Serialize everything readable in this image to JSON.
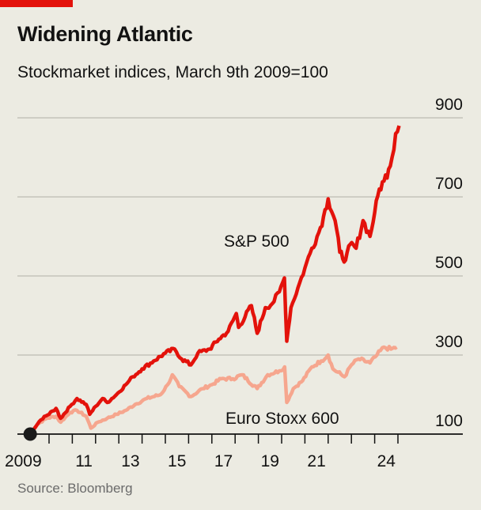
{
  "header": {
    "title": "Widening Atlantic",
    "subtitle": "Stockmarket indices, March 9th 2009=100"
  },
  "footer": {
    "source": "Source: Bloomberg"
  },
  "colors": {
    "sp500": "#e3120b",
    "eurostoxx": "#f6a68e",
    "accent": "#e3120b",
    "background": "#ecebe2"
  },
  "chart_data": {
    "type": "line",
    "title": "Widening Atlantic",
    "subtitle": "Stockmarket indices, March 9th 2009=100",
    "ylim": [
      100,
      900
    ],
    "yticks": [
      100,
      300,
      500,
      700,
      900
    ],
    "ytick_labels": [
      "100",
      "300",
      "500",
      "700",
      "900"
    ],
    "xlim": [
      2009.0,
      2025.1
    ],
    "xtick_labels": [
      {
        "year": 2009,
        "label": "2009"
      },
      {
        "year": 2011,
        "label": "11"
      },
      {
        "year": 2013,
        "label": "13"
      },
      {
        "year": 2015,
        "label": "15"
      },
      {
        "year": 2017,
        "label": "17"
      },
      {
        "year": 2019,
        "label": "19"
      },
      {
        "year": 2021,
        "label": "21"
      },
      {
        "year": 2024,
        "label": "24"
      }
    ],
    "grid": true,
    "series": [
      {
        "name": "S&P 500",
        "label": "S&P 500",
        "points": [
          [
            2009.19,
            100
          ],
          [
            2009.5,
            125
          ],
          [
            2009.8,
            145
          ],
          [
            2010.0,
            150
          ],
          [
            2010.3,
            165
          ],
          [
            2010.5,
            140
          ],
          [
            2010.9,
            170
          ],
          [
            2011.2,
            190
          ],
          [
            2011.6,
            175
          ],
          [
            2011.75,
            150
          ],
          [
            2012.0,
            170
          ],
          [
            2012.3,
            190
          ],
          [
            2012.5,
            180
          ],
          [
            2012.9,
            200
          ],
          [
            2013.3,
            225
          ],
          [
            2013.6,
            245
          ],
          [
            2014.0,
            265
          ],
          [
            2014.5,
            285
          ],
          [
            2015.0,
            305
          ],
          [
            2015.4,
            315
          ],
          [
            2015.7,
            290
          ],
          [
            2016.1,
            275
          ],
          [
            2016.4,
            305
          ],
          [
            2016.9,
            315
          ],
          [
            2017.3,
            340
          ],
          [
            2017.7,
            360
          ],
          [
            2018.05,
            405
          ],
          [
            2018.15,
            370
          ],
          [
            2018.7,
            425
          ],
          [
            2018.95,
            355
          ],
          [
            2019.3,
            420
          ],
          [
            2019.6,
            430
          ],
          [
            2019.9,
            460
          ],
          [
            2020.12,
            495
          ],
          [
            2020.22,
            335
          ],
          [
            2020.4,
            420
          ],
          [
            2020.7,
            470
          ],
          [
            2021.0,
            520
          ],
          [
            2021.3,
            570
          ],
          [
            2021.6,
            610
          ],
          [
            2021.8,
            650
          ],
          [
            2022.0,
            695
          ],
          [
            2022.3,
            640
          ],
          [
            2022.5,
            560
          ],
          [
            2022.75,
            540
          ],
          [
            2022.95,
            580
          ],
          [
            2023.2,
            570
          ],
          [
            2023.5,
            640
          ],
          [
            2023.8,
            600
          ],
          [
            2024.0,
            660
          ],
          [
            2024.2,
            720
          ],
          [
            2024.4,
            740
          ],
          [
            2024.6,
            770
          ],
          [
            2024.75,
            800
          ],
          [
            2024.9,
            860
          ],
          [
            2025.05,
            880
          ]
        ]
      },
      {
        "name": "Euro Stoxx 600",
        "label": "Euro Stoxx 600",
        "points": [
          [
            2009.19,
            100
          ],
          [
            2009.5,
            125
          ],
          [
            2009.9,
            140
          ],
          [
            2010.3,
            145
          ],
          [
            2010.5,
            130
          ],
          [
            2010.9,
            155
          ],
          [
            2011.2,
            160
          ],
          [
            2011.6,
            145
          ],
          [
            2011.8,
            115
          ],
          [
            2012.1,
            130
          ],
          [
            2012.5,
            140
          ],
          [
            2012.9,
            150
          ],
          [
            2013.3,
            160
          ],
          [
            2013.7,
            175
          ],
          [
            2014.2,
            190
          ],
          [
            2014.8,
            200
          ],
          [
            2015.1,
            225
          ],
          [
            2015.3,
            250
          ],
          [
            2015.6,
            220
          ],
          [
            2016.1,
            195
          ],
          [
            2016.6,
            215
          ],
          [
            2017.0,
            225
          ],
          [
            2017.4,
            240
          ],
          [
            2017.9,
            240
          ],
          [
            2018.3,
            250
          ],
          [
            2018.95,
            215
          ],
          [
            2019.4,
            250
          ],
          [
            2019.9,
            260
          ],
          [
            2020.13,
            270
          ],
          [
            2020.22,
            180
          ],
          [
            2020.5,
            215
          ],
          [
            2020.9,
            235
          ],
          [
            2021.3,
            270
          ],
          [
            2021.7,
            285
          ],
          [
            2022.0,
            300
          ],
          [
            2022.2,
            265
          ],
          [
            2022.7,
            245
          ],
          [
            2023.0,
            275
          ],
          [
            2023.3,
            290
          ],
          [
            2023.8,
            280
          ],
          [
            2024.1,
            300
          ],
          [
            2024.4,
            320
          ],
          [
            2024.7,
            315
          ],
          [
            2024.95,
            320
          ]
        ]
      }
    ]
  }
}
